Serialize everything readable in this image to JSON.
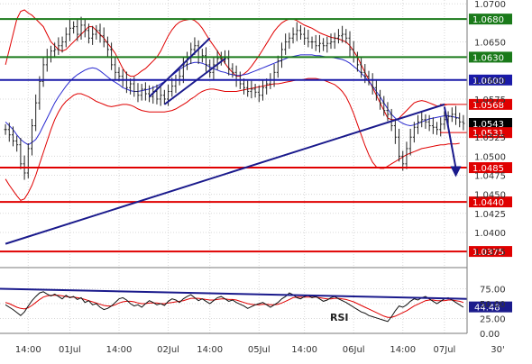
{
  "chart_data": [
    {
      "type": "candlestick",
      "panel": "price",
      "x_ticks": [
        "14:00",
        "01Jul",
        "14:00",
        "02Jul",
        "14:00",
        "05Jul",
        "14:00",
        "06Jul",
        "14:00",
        "07Jul",
        "30'"
      ],
      "y_ticks": [
        "1.0700",
        "1.0650",
        "1.0600",
        "1.0575",
        "1.0525",
        "1.0500",
        "1.0475",
        "1.0450",
        "1.0425",
        "1.0400",
        "1.0375"
      ],
      "ylim": [
        1.0355,
        1.0705
      ],
      "levels": [
        {
          "value": 1.068,
          "label": "1.0680",
          "color": "#1a7a1a"
        },
        {
          "value": 1.063,
          "label": "1.0630",
          "color": "#1a7a1a"
        },
        {
          "value": 1.06,
          "label": "1.0600",
          "color": "#1a1aa8"
        },
        {
          "value": 1.0568,
          "label": "1.0568",
          "color": "#e00000"
        },
        {
          "value": 1.0543,
          "label": "1.0543",
          "color": "#000000"
        },
        {
          "value": 1.0531,
          "label": "1.0531",
          "color": "#e00000"
        },
        {
          "value": 1.0485,
          "label": "1.0485",
          "color": "#e00000"
        },
        {
          "value": 1.044,
          "label": "1.0440",
          "color": "#e00000"
        },
        {
          "value": 1.0375,
          "label": "1.0375",
          "color": "#e00000"
        }
      ],
      "series": [
        {
          "values": [
            1.0535,
            1.0528,
            1.052,
            1.0515,
            1.049,
            1.0478,
            1.051,
            1.054,
            1.057,
            1.0598,
            1.062,
            1.063,
            1.0638,
            1.064,
            1.0645,
            1.065,
            1.066,
            1.0668,
            1.067,
            1.066,
            1.0672,
            1.0665,
            1.0655,
            1.066,
            1.0665,
            1.0658,
            1.065,
            1.064,
            1.062,
            1.061,
            1.0605,
            1.06,
            1.059,
            1.0595,
            1.0585,
            1.058,
            1.0588,
            1.0582,
            1.0578,
            1.0585,
            1.0575,
            1.058,
            1.0575,
            1.0585,
            1.0592,
            1.06,
            1.0605,
            1.062,
            1.063,
            1.064,
            1.0645,
            1.063,
            1.0632,
            1.062,
            1.061,
            1.062,
            1.0628,
            1.063,
            1.0628,
            1.0615,
            1.061,
            1.06,
            1.0595,
            1.059,
            1.0585,
            1.0588,
            1.0584,
            1.058,
            1.059,
            1.0595,
            1.06,
            1.061,
            1.0625,
            1.064,
            1.065,
            1.0655,
            1.066,
            1.0665,
            1.066,
            1.0655,
            1.065,
            1.065,
            1.0645,
            1.0648,
            1.0645,
            1.0648,
            1.065,
            1.0655,
            1.0658,
            1.066,
            1.0655,
            1.064,
            1.063,
            1.062,
            1.061,
            1.0605,
            1.06,
            1.059,
            1.058,
            1.057,
            1.056,
            1.0555,
            1.054,
            1.0525,
            1.05,
            1.049,
            1.051,
            1.0525,
            1.0538,
            1.0545,
            1.0548,
            1.0545,
            1.054,
            1.0538,
            1.0535,
            1.0542,
            1.0548,
            1.0552,
            1.0555,
            1.055,
            1.0545,
            1.0543
          ]
        },
        {
          "name": "upper-band",
          "values": [
            1.062,
            1.064,
            1.066,
            1.068,
            1.069,
            1.0692,
            1.0688,
            1.0685,
            1.068,
            1.0675,
            1.067,
            1.066,
            1.065,
            1.0645,
            1.064,
            1.0638,
            1.064,
            1.0645,
            1.065,
            1.0655,
            1.066,
            1.0665,
            1.067,
            1.067,
            1.0665,
            1.066,
            1.0655,
            1.0648,
            1.0642,
            1.0635,
            1.0625,
            1.0615,
            1.0608,
            1.0605,
            1.0605,
            1.0608,
            1.0612,
            1.0615,
            1.062,
            1.0625,
            1.063,
            1.0638,
            1.0648,
            1.0658,
            1.0666,
            1.0672,
            1.0676,
            1.0678,
            1.0679,
            1.068,
            1.0678,
            1.0674,
            1.0668,
            1.066,
            1.0652,
            1.0645,
            1.0638,
            1.063,
            1.0622,
            1.0615,
            1.061,
            1.0605,
            1.0605,
            1.0608,
            1.0612,
            1.0618,
            1.0625,
            1.0632,
            1.064,
            1.0648,
            1.0656,
            1.0664,
            1.067,
            1.0675,
            1.0678,
            1.068,
            1.068,
            1.0678,
            1.0675,
            1.0672,
            1.067,
            1.0668,
            1.0665,
            1.0662,
            1.066,
            1.0658,
            1.0656,
            1.0655,
            1.0654,
            1.0652,
            1.065,
            1.0645,
            1.0638,
            1.063,
            1.062,
            1.061,
            1.06,
            1.059,
            1.058,
            1.057,
            1.056,
            1.055,
            1.0548,
            1.0548,
            1.055,
            1.0555,
            1.056,
            1.0565,
            1.057,
            1.0572,
            1.0573,
            1.0572,
            1.057,
            1.0568,
            1.0566,
            1.0566,
            1.0567,
            1.0568,
            1.0568,
            1.0568
          ]
        },
        {
          "name": "middle-band",
          "values": [
            1.0545,
            1.054,
            1.0535,
            1.0528,
            1.0522,
            1.0518,
            1.0515,
            1.0518,
            1.0522,
            1.053,
            1.054,
            1.055,
            1.056,
            1.057,
            1.0578,
            1.0585,
            1.0592,
            1.0598,
            1.0603,
            1.0607,
            1.061,
            1.0613,
            1.0615,
            1.0616,
            1.0615,
            1.0612,
            1.0608,
            1.0604,
            1.06,
            1.0597,
            1.0594,
            1.059,
            1.0588,
            1.0586,
            1.0585,
            1.0585,
            1.0586,
            1.0587,
            1.0588,
            1.059,
            1.0592,
            1.0595,
            1.0598,
            1.0602,
            1.0606,
            1.061,
            1.0614,
            1.0617,
            1.062,
            1.0622,
            1.0623,
            1.0623,
            1.0622,
            1.062,
            1.0617,
            1.0615,
            1.0613,
            1.0611,
            1.061,
            1.0608,
            1.0607,
            1.0606,
            1.0606,
            1.0607,
            1.0608,
            1.061,
            1.0612,
            1.0614,
            1.0616,
            1.0618,
            1.062,
            1.0622,
            1.0624,
            1.0626,
            1.0628,
            1.063,
            1.0631,
            1.0632,
            1.0633,
            1.0633,
            1.0633,
            1.0633,
            1.0632,
            1.0632,
            1.0631,
            1.063,
            1.063,
            1.0629,
            1.0628,
            1.0627,
            1.0625,
            1.0622,
            1.0618,
            1.0614,
            1.0609,
            1.0604,
            1.0598,
            1.0592,
            1.0585,
            1.0578,
            1.057,
            1.0562,
            1.0555,
            1.055,
            1.0546,
            1.0543,
            1.0541,
            1.054,
            1.0541,
            1.0543,
            1.0545,
            1.0547,
            1.0549,
            1.055,
            1.0551,
            1.0552,
            1.0553,
            1.0553,
            1.0552,
            1.0551,
            1.055
          ]
        },
        {
          "name": "lower-band",
          "values": [
            1.047,
            1.0462,
            1.0455,
            1.0448,
            1.0442,
            1.0444,
            1.0452,
            1.0462,
            1.0475,
            1.049,
            1.0505,
            1.052,
            1.0535,
            1.0548,
            1.0558,
            1.0566,
            1.0572,
            1.0576,
            1.058,
            1.0582,
            1.0582,
            1.058,
            1.0578,
            1.0575,
            1.0572,
            1.057,
            1.0568,
            1.0566,
            1.0565,
            1.0566,
            1.0567,
            1.0568,
            1.0568,
            1.0567,
            1.0565,
            1.0562,
            1.056,
            1.0559,
            1.0558,
            1.0558,
            1.0558,
            1.0558,
            1.0558,
            1.0559,
            1.056,
            1.0562,
            1.0565,
            1.0568,
            1.0571,
            1.0575,
            1.0578,
            1.0582,
            1.0585,
            1.0587,
            1.0588,
            1.0588,
            1.0587,
            1.0586,
            1.0585,
            1.0585,
            1.0585,
            1.0585,
            1.0586,
            1.0587,
            1.0588,
            1.0589,
            1.059,
            1.0591,
            1.0592,
            1.0593,
            1.0594,
            1.0595,
            1.0595,
            1.0596,
            1.0597,
            1.0598,
            1.0599,
            1.06,
            1.06,
            1.0601,
            1.0602,
            1.0602,
            1.0602,
            1.0601,
            1.06,
            1.0598,
            1.0596,
            1.0594,
            1.059,
            1.0585,
            1.0578,
            1.0568,
            1.0556,
            1.0542,
            1.0528,
            1.0514,
            1.0502,
            1.0492,
            1.0486,
            1.0484,
            1.0484,
            1.0487,
            1.049,
            1.0493,
            1.0496,
            1.0499,
            1.0502,
            1.0504,
            1.0506,
            1.0508,
            1.051,
            1.0511,
            1.0512,
            1.0513,
            1.0514,
            1.0515,
            1.0515,
            1.0516,
            1.0516,
            1.0516,
            1.0517
          ]
        }
      ],
      "trendlines": [
        {
          "color": "#1a1a8c",
          "points": [
            [
              0,
              1.0385
            ],
            [
              116,
              1.0568
            ]
          ]
        },
        {
          "color": "#1a1a8c",
          "points": [
            [
              38,
              1.0578
            ],
            [
              54,
              1.0655
            ]
          ]
        },
        {
          "color": "#1a1a8c",
          "points": [
            [
              42,
              1.0568
            ],
            [
              58,
              1.0628
            ]
          ]
        }
      ],
      "projection": {
        "color": "#1a1a8c",
        "points": [
          [
            116,
            1.0565
          ],
          [
            119,
            1.0475
          ]
        ]
      }
    },
    {
      "type": "line",
      "panel": "rsi",
      "label": "RSI",
      "y_ticks": [
        "75.00",
        "50.00",
        "25.00",
        "0.00"
      ],
      "ylim": [
        0,
        100
      ],
      "current": {
        "value": 44.48,
        "label": "44.48"
      },
      "series": [
        {
          "values": [
            48,
            44,
            40,
            35,
            30,
            36,
            46,
            55,
            62,
            68,
            70,
            66,
            63,
            66,
            62,
            58,
            64,
            60,
            62,
            57,
            60,
            52,
            55,
            48,
            50,
            44,
            40,
            42,
            46,
            52,
            58,
            60,
            56,
            50,
            46,
            48,
            44,
            50,
            55,
            52,
            48,
            50,
            47,
            54,
            58,
            56,
            52,
            58,
            62,
            65,
            60,
            55,
            58,
            54,
            50,
            55,
            60,
            62,
            58,
            54,
            56,
            52,
            49,
            46,
            42,
            45,
            48,
            50,
            52,
            48,
            44,
            48,
            52,
            58,
            62,
            68,
            65,
            60,
            58,
            62,
            64,
            60,
            62,
            58,
            54,
            56,
            60,
            62,
            58,
            55,
            52,
            48,
            44,
            40,
            36,
            34,
            30,
            28,
            26,
            24,
            22,
            20,
            28,
            38,
            46,
            44,
            48,
            54,
            58,
            56,
            60,
            62,
            58,
            54,
            50,
            54,
            58,
            60,
            56,
            52,
            48,
            44
          ]
        },
        {
          "name": "rsi-average",
          "values": [
            52,
            50,
            47,
            44,
            42,
            41,
            43,
            47,
            52,
            57,
            61,
            63,
            64,
            64,
            64,
            63,
            62,
            61,
            61,
            60,
            59,
            57,
            55,
            53,
            51,
            49,
            47,
            46,
            46,
            48,
            51,
            53,
            54,
            54,
            53,
            51,
            50,
            50,
            51,
            51,
            51,
            50,
            50,
            51,
            52,
            53,
            54,
            55,
            57,
            59,
            59,
            59,
            58,
            57,
            56,
            56,
            57,
            58,
            58,
            57,
            57,
            56,
            54,
            52,
            50,
            49,
            48,
            48,
            49,
            49,
            48,
            48,
            49,
            51,
            54,
            57,
            60,
            61,
            61,
            61,
            61,
            61,
            61,
            60,
            59,
            58,
            58,
            59,
            59,
            58,
            57,
            55,
            53,
            50,
            47,
            44,
            41,
            38,
            35,
            32,
            29,
            27,
            27,
            29,
            32,
            35,
            38,
            42,
            46,
            49,
            52,
            55,
            56,
            56,
            55,
            55,
            55,
            56,
            56,
            55,
            54,
            52
          ]
        }
      ],
      "trendlines": [
        {
          "color": "#1a1a8c",
          "points": [
            [
              0,
              75
            ],
            [
              121,
              58
            ]
          ]
        }
      ]
    }
  ]
}
